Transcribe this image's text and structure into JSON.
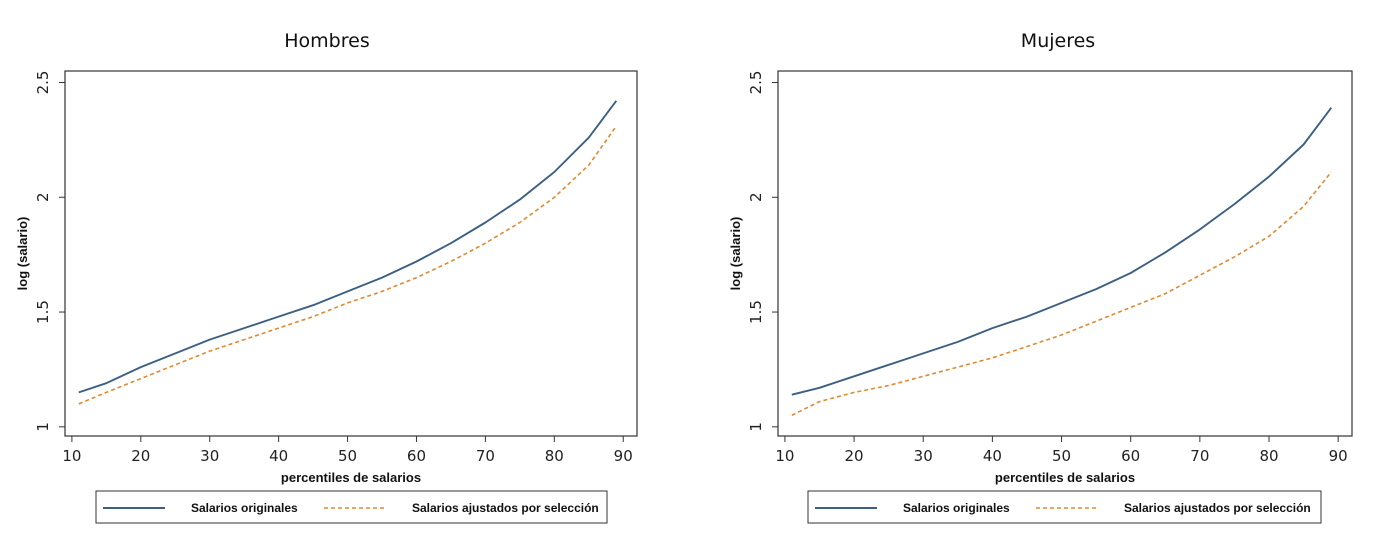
{
  "chart_data": [
    {
      "type": "line",
      "title": "Hombres",
      "xlabel": "percentiles de salarios",
      "ylabel": "log (salario)",
      "xlim": [
        9,
        92
      ],
      "ylim": [
        0.96,
        2.55
      ],
      "xticks": [
        10,
        20,
        30,
        40,
        50,
        60,
        70,
        80,
        90
      ],
      "yticks": [
        1,
        1.5,
        2,
        2.5
      ],
      "ytick_labels": [
        "1",
        "1.5",
        "2",
        "2.5"
      ],
      "legend": [
        "Salarios originales",
        "Salarios ajustados por selección"
      ],
      "legend_position": "bottom",
      "x": [
        11,
        15,
        20,
        25,
        30,
        35,
        40,
        45,
        50,
        55,
        60,
        65,
        70,
        75,
        80,
        85,
        89
      ],
      "series": [
        {
          "name": "Salarios originales",
          "color": "#3d5f82",
          "style": "solid",
          "values": [
            1.15,
            1.19,
            1.26,
            1.32,
            1.38,
            1.43,
            1.48,
            1.53,
            1.59,
            1.65,
            1.72,
            1.8,
            1.89,
            1.99,
            2.11,
            2.26,
            2.42
          ]
        },
        {
          "name": "Salarios ajustados por selección",
          "color": "#e0892e",
          "style": "dashed",
          "values": [
            1.1,
            1.15,
            1.21,
            1.27,
            1.33,
            1.38,
            1.43,
            1.48,
            1.54,
            1.59,
            1.65,
            1.72,
            1.8,
            1.89,
            2.0,
            2.14,
            2.31
          ]
        }
      ]
    },
    {
      "type": "line",
      "title": "Mujeres",
      "xlabel": "percentiles de salarios",
      "ylabel": "log (salario)",
      "xlim": [
        9,
        92
      ],
      "ylim": [
        0.96,
        2.55
      ],
      "xticks": [
        10,
        20,
        30,
        40,
        50,
        60,
        70,
        80,
        90
      ],
      "yticks": [
        1,
        1.5,
        2,
        2.5
      ],
      "ytick_labels": [
        "1",
        "1.5",
        "2",
        "2.5"
      ],
      "legend": [
        "Salarios originales",
        "Salarios ajustados por selección"
      ],
      "legend_position": "bottom",
      "x": [
        11,
        15,
        20,
        25,
        30,
        35,
        40,
        45,
        50,
        55,
        60,
        65,
        70,
        75,
        80,
        85,
        89
      ],
      "series": [
        {
          "name": "Salarios originales",
          "color": "#3d5f82",
          "style": "solid",
          "values": [
            1.14,
            1.17,
            1.22,
            1.27,
            1.32,
            1.37,
            1.43,
            1.48,
            1.54,
            1.6,
            1.67,
            1.76,
            1.86,
            1.97,
            2.09,
            2.23,
            2.39
          ]
        },
        {
          "name": "Salarios ajustados por selección",
          "color": "#e0892e",
          "style": "dashed",
          "values": [
            1.05,
            1.11,
            1.15,
            1.18,
            1.22,
            1.26,
            1.3,
            1.35,
            1.4,
            1.46,
            1.52,
            1.58,
            1.66,
            1.74,
            1.83,
            1.96,
            2.11
          ]
        }
      ]
    }
  ]
}
